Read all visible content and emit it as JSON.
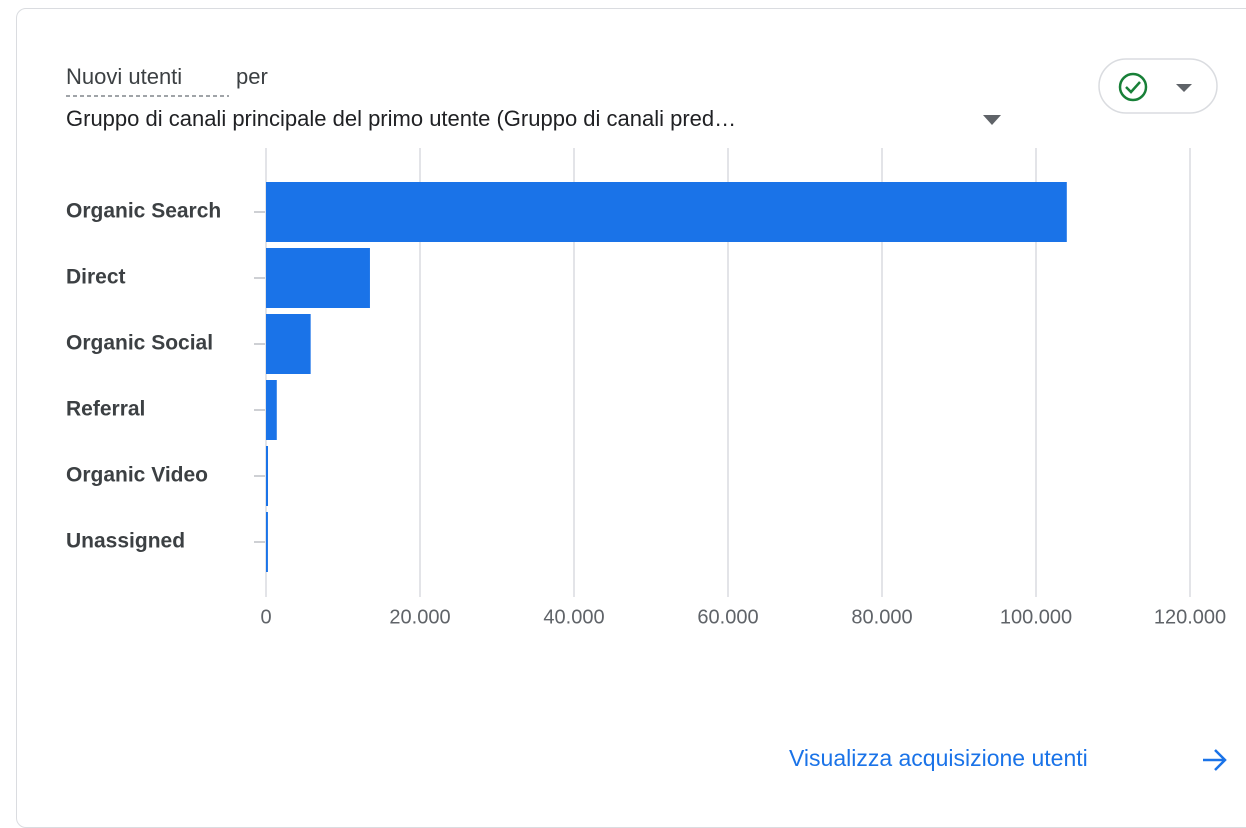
{
  "chart_data": {
    "type": "bar",
    "orientation": "horizontal",
    "title": "Nuovi utenti",
    "title_suffix": "per",
    "subtitle": "Gruppo di canali principale del primo utente (Gruppo di canali pred…",
    "categories": [
      "Organic Search",
      "Direct",
      "Organic Social",
      "Referral",
      "Organic Video",
      "Unassigned"
    ],
    "values": [
      104000,
      13500,
      5800,
      1400,
      260,
      250
    ],
    "color": "#1a73e8",
    "xlim": [
      0,
      120000
    ],
    "xticks": [
      0,
      {
        "value": 20000,
        "label": "20.000"
      },
      {
        "value": 40000,
        "label": "40.000"
      },
      {
        "value": 60000,
        "label": "60.000"
      },
      {
        "value": 80000,
        "label": "80.000"
      },
      {
        "value": 100000,
        "label": "100.000"
      },
      {
        "value": 120000,
        "label": "120.000"
      }
    ],
    "grid": true,
    "link": "Visualizza acquisizione utenti"
  }
}
